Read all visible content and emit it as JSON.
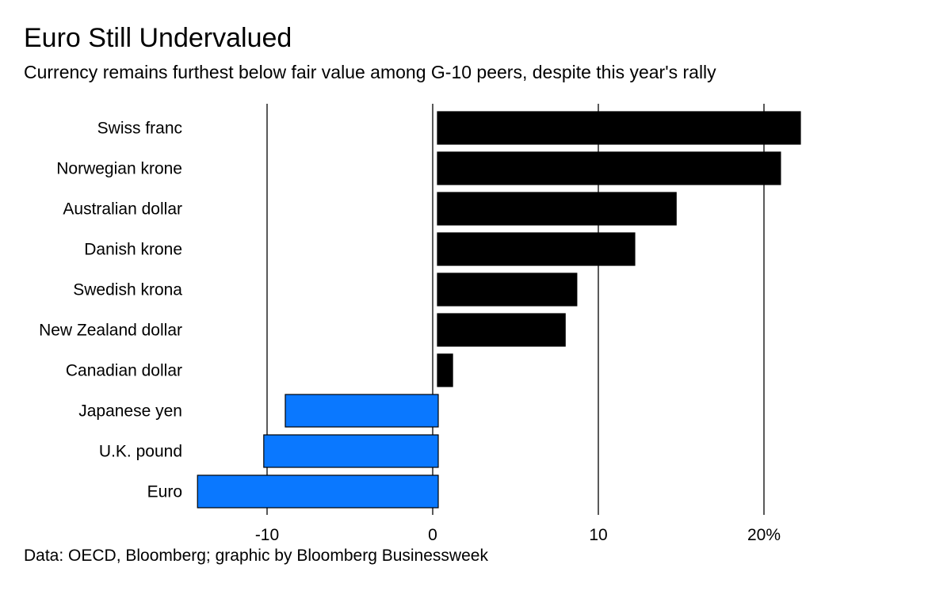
{
  "chart_data": {
    "type": "bar",
    "orientation": "horizontal",
    "title": "Euro Still Undervalued",
    "subtitle": "Currency remains furthest below fair value among G-10 peers, despite this year's rally",
    "source": "Data: OECD, Bloomberg; graphic by Bloomberg Businessweek",
    "categories": [
      "Swiss franc",
      "Norwegian krone",
      "Australian dollar",
      "Danish krone",
      "Swedish krona",
      "New Zealand dollar",
      "Canadian dollar",
      "Japanese yen",
      "U.K. pound",
      "Euro"
    ],
    "values": [
      22.2,
      21.0,
      14.7,
      12.2,
      8.7,
      8.0,
      1.2,
      -8.9,
      -10.2,
      -14.2
    ],
    "xlim": [
      -14.5,
      24
    ],
    "ticks": [
      {
        "value": -10,
        "label": "-10"
      },
      {
        "value": 0,
        "label": "0"
      },
      {
        "value": 10,
        "label": "10"
      },
      {
        "value": 20,
        "label": "20%"
      }
    ],
    "grid": true,
    "colors": {
      "positive": "#000000",
      "negative": "#0a78ff",
      "stroke": "#000000"
    }
  }
}
